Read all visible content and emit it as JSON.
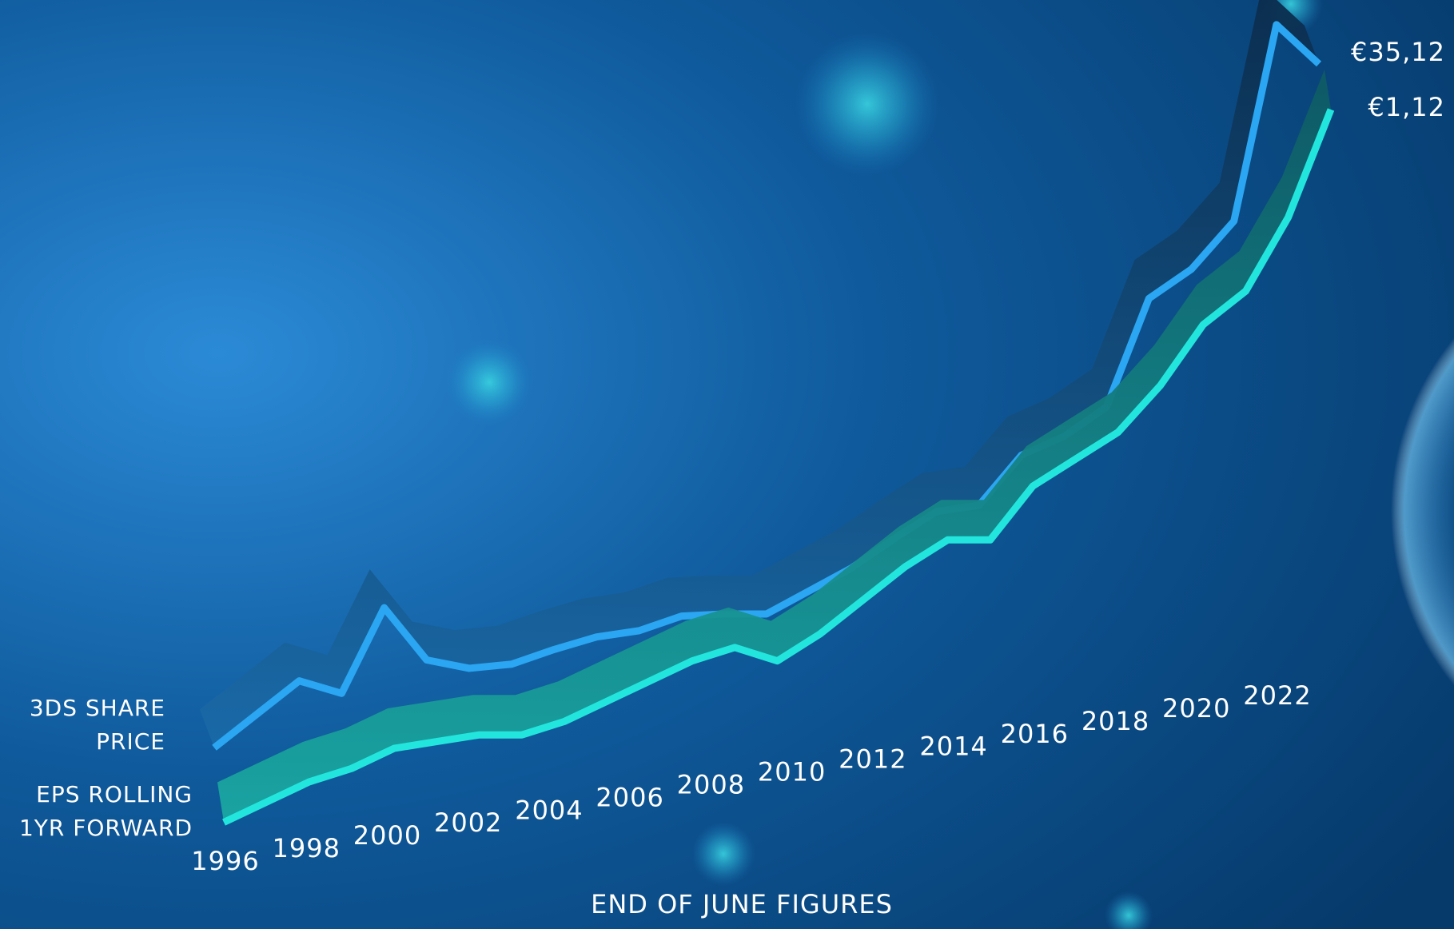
{
  "chart_data": {
    "type": "line",
    "x_label": "END OF JUNE FIGURES",
    "x": [
      1996,
      1997,
      1998,
      1999,
      2000,
      2001,
      2002,
      2003,
      2004,
      2005,
      2006,
      2007,
      2008,
      2009,
      2010,
      2011,
      2012,
      2013,
      2014,
      2015,
      2016,
      2017,
      2018,
      2019,
      2020,
      2021,
      2022
    ],
    "xticks": [
      1996,
      1998,
      2000,
      2002,
      2004,
      2006,
      2008,
      2010,
      2012,
      2014,
      2016,
      2018,
      2020,
      2022
    ],
    "series": [
      {
        "name": "3DS SHARE PRICE",
        "color": "#2ba6f2",
        "values": [
          2.4,
          4.0,
          5.6,
          5.0,
          9.1,
          6.6,
          6.2,
          6.4,
          7.1,
          7.7,
          8.0,
          8.7,
          8.8,
          8.8,
          9.9,
          11.0,
          12.4,
          13.7,
          14.0,
          16.4,
          17.3,
          18.7,
          23.9,
          25.3,
          27.6,
          37.0,
          35.12
        ],
        "value_labels": [
          null,
          null,
          null,
          null,
          null,
          null,
          null,
          null,
          null,
          null,
          null,
          null,
          null,
          null,
          null,
          null,
          null,
          null,
          null,
          null,
          null,
          null,
          null,
          null,
          null,
          null,
          "€35,12"
        ]
      },
      {
        "name": "EPS ROLLING 1YR FORWARD",
        "color": "#22e6de",
        "values": [
          0.06,
          0.09,
          0.12,
          0.14,
          0.17,
          0.18,
          0.19,
          0.19,
          0.21,
          0.24,
          0.27,
          0.3,
          0.32,
          0.3,
          0.34,
          0.39,
          0.44,
          0.48,
          0.48,
          0.56,
          0.6,
          0.64,
          0.71,
          0.8,
          0.85,
          0.96,
          1.12
        ],
        "value_labels": [
          null,
          null,
          null,
          null,
          null,
          null,
          null,
          null,
          null,
          null,
          null,
          null,
          null,
          null,
          null,
          null,
          null,
          null,
          null,
          null,
          null,
          null,
          null,
          null,
          null,
          null,
          "€1,12"
        ]
      }
    ]
  }
}
